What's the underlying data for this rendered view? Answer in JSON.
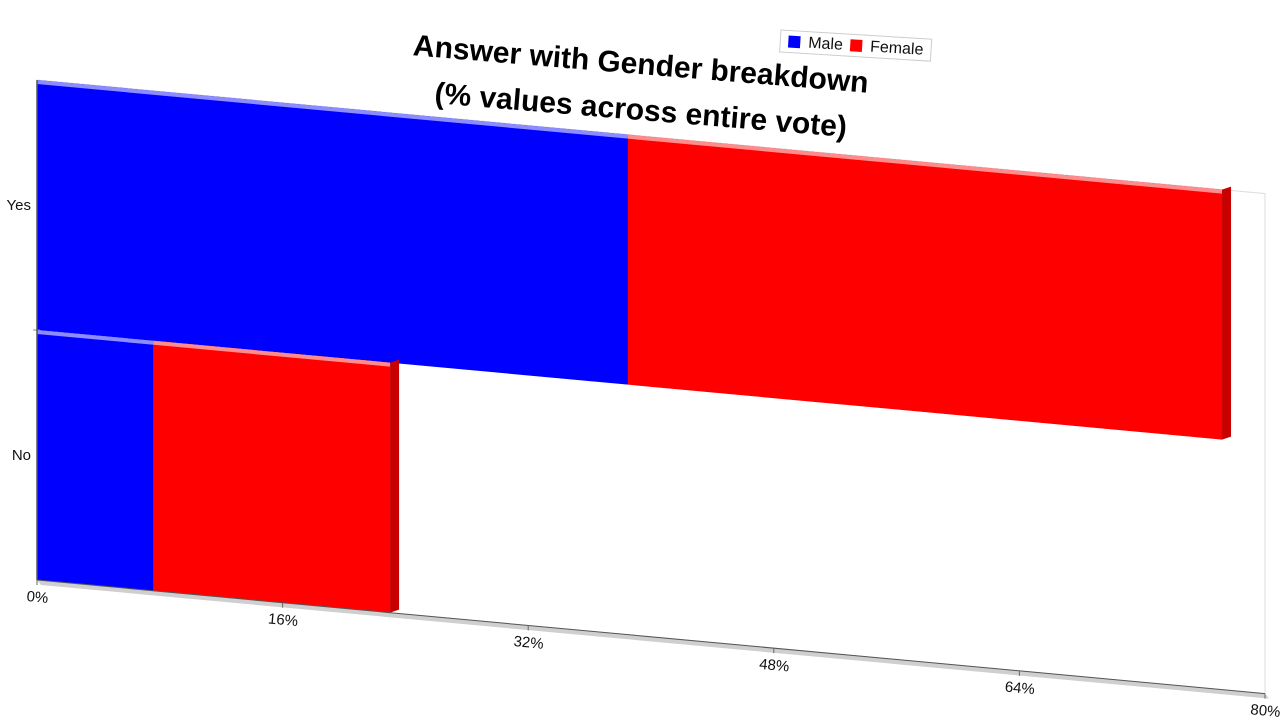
{
  "chart_data": {
    "type": "bar",
    "orientation": "horizontal",
    "stacked": true,
    "three_d": true,
    "title": "Answer with Gender breakdown",
    "subtitle": "(% values across entire vote)",
    "categories": [
      "Yes",
      "No"
    ],
    "series": [
      {
        "name": "Male",
        "values": [
          38.5,
          7.6
        ],
        "color": "#0000ff"
      },
      {
        "name": "Female",
        "values": [
          38.7,
          15.4
        ],
        "color": "#ff0000"
      }
    ],
    "xlim": [
      0,
      80
    ],
    "x_ticks": [
      "0%",
      "16%",
      "32%",
      "48%",
      "64%",
      "80%"
    ],
    "x_tick_values": [
      0,
      16,
      32,
      48,
      64,
      80
    ],
    "xlabel": "",
    "ylabel": "",
    "grid": false,
    "legend_position": "top-right"
  }
}
